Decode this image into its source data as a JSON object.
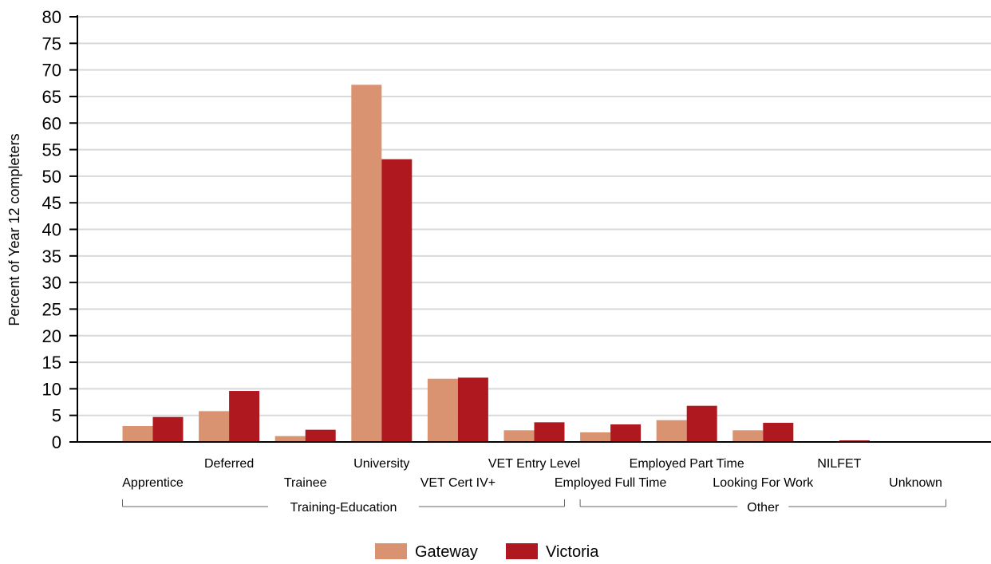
{
  "chart_data": {
    "type": "bar",
    "ylabel": "Percent of Year 12 completers",
    "xlabel": "",
    "ylim": [
      0,
      80
    ],
    "yticks": [
      0,
      5,
      10,
      15,
      20,
      25,
      30,
      35,
      40,
      45,
      50,
      55,
      60,
      65,
      70,
      75,
      80
    ],
    "yticks_display": [
      "0",
      "5",
      "10",
      "15",
      "20",
      "25",
      "30",
      "35",
      "40",
      "45",
      "50",
      "55",
      "60",
      "65",
      "70",
      "75",
      "80"
    ],
    "grid": "horizontal",
    "legend_position": "bottom-center",
    "categories": [
      "Apprentice",
      "Deferred",
      "Trainee",
      "University",
      "VET Cert IV+",
      "VET Entry Level",
      "Employed Full Time",
      "Employed Part Time",
      "Looking For Work",
      "NILFET",
      "Unknown"
    ],
    "groups": [
      {
        "label": "Training-Education",
        "start_index": 0,
        "end_index": 5
      },
      {
        "label": "Other",
        "start_index": 6,
        "end_index": 10
      }
    ],
    "series": [
      {
        "name": "Gateway",
        "color": "#DA9370",
        "values": [
          3.0,
          5.8,
          1.1,
          67.2,
          11.9,
          2.2,
          1.8,
          4.1,
          2.2,
          0.0,
          0.0
        ]
      },
      {
        "name": "Victoria",
        "color": "#B01820",
        "values": [
          4.7,
          9.6,
          2.3,
          53.2,
          12.1,
          3.7,
          3.3,
          6.8,
          3.6,
          0.3,
          0.1
        ]
      }
    ]
  }
}
